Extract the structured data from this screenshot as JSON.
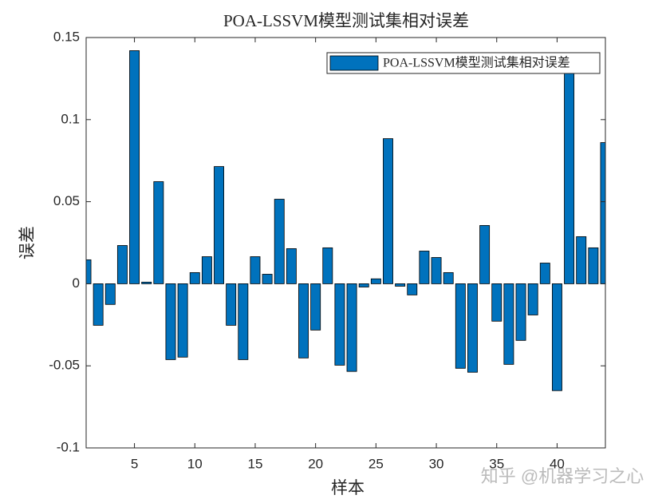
{
  "chart_data": {
    "type": "bar",
    "title": "POA-LSSVM模型测试集相对误差",
    "x_label": "样本",
    "y_label": "误差",
    "x": [
      1,
      2,
      3,
      4,
      5,
      6,
      7,
      8,
      9,
      10,
      11,
      12,
      13,
      14,
      15,
      16,
      17,
      18,
      19,
      20,
      21,
      22,
      23,
      24,
      25,
      26,
      27,
      28,
      29,
      30,
      31,
      32,
      33,
      34,
      35,
      36,
      37,
      38,
      39,
      40,
      41,
      42,
      43,
      44
    ],
    "series": [
      {
        "name": "POA-LSSVM模型测试集相对误差",
        "color": "#0072bd",
        "values": [
          0.0146,
          -0.0253,
          -0.0126,
          0.0233,
          0.142,
          0.001,
          0.0622,
          -0.0462,
          -0.0447,
          0.0068,
          0.0165,
          0.0714,
          -0.0253,
          -0.0462,
          0.0165,
          0.0058,
          0.0515,
          0.0214,
          -0.0452,
          -0.0282,
          0.0219,
          -0.0496,
          -0.0534,
          -0.002,
          0.003,
          0.0884,
          -0.0015,
          -0.0068,
          0.0199,
          0.016,
          0.0068,
          -0.0515,
          -0.0539,
          0.0355,
          -0.0228,
          -0.0491,
          -0.0345,
          -0.019,
          0.0126,
          -0.0651,
          0.13,
          0.0287,
          0.0219,
          0.086
        ]
      }
    ],
    "xlim": [
      1,
      44
    ],
    "xticks": [
      5,
      10,
      15,
      20,
      25,
      30,
      35,
      40
    ],
    "ylim": [
      -0.1,
      0.15
    ],
    "yticks": [
      -0.1,
      -0.05,
      0,
      0.05,
      0.1,
      0.15
    ],
    "legend": "upper right",
    "watermark": "知乎 @机器学习之心"
  }
}
